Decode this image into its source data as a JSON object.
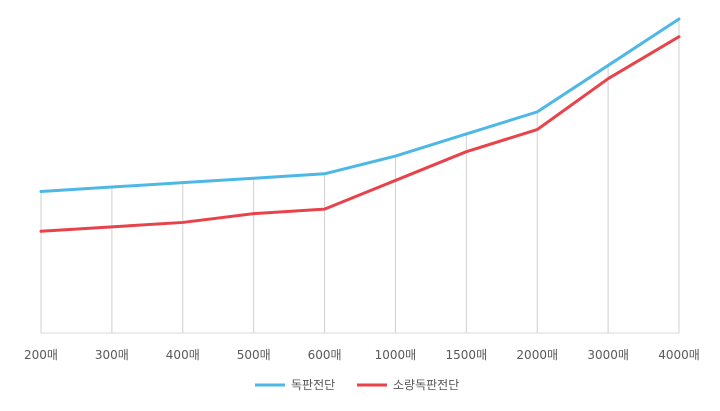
{
  "chart_data": {
    "type": "line",
    "categories": [
      "200매",
      "300매",
      "400매",
      "500매",
      "600매",
      "1000매",
      "1500매",
      "2000매",
      "3000매",
      "4000매"
    ],
    "series": [
      {
        "name": "독판전단",
        "color": "#4db8e6",
        "values": [
          30,
          32,
          34,
          36,
          38,
          46,
          56,
          66,
          87,
          108
        ]
      },
      {
        "name": "소량독판전단",
        "color": "#e8424a",
        "values": [
          12,
          14,
          16,
          20,
          22,
          35,
          48,
          58,
          81,
          100
        ]
      }
    ],
    "ylim": [
      -34,
      108
    ],
    "grid": "vertical drop lines at categories",
    "legend_position": "bottom-center"
  }
}
